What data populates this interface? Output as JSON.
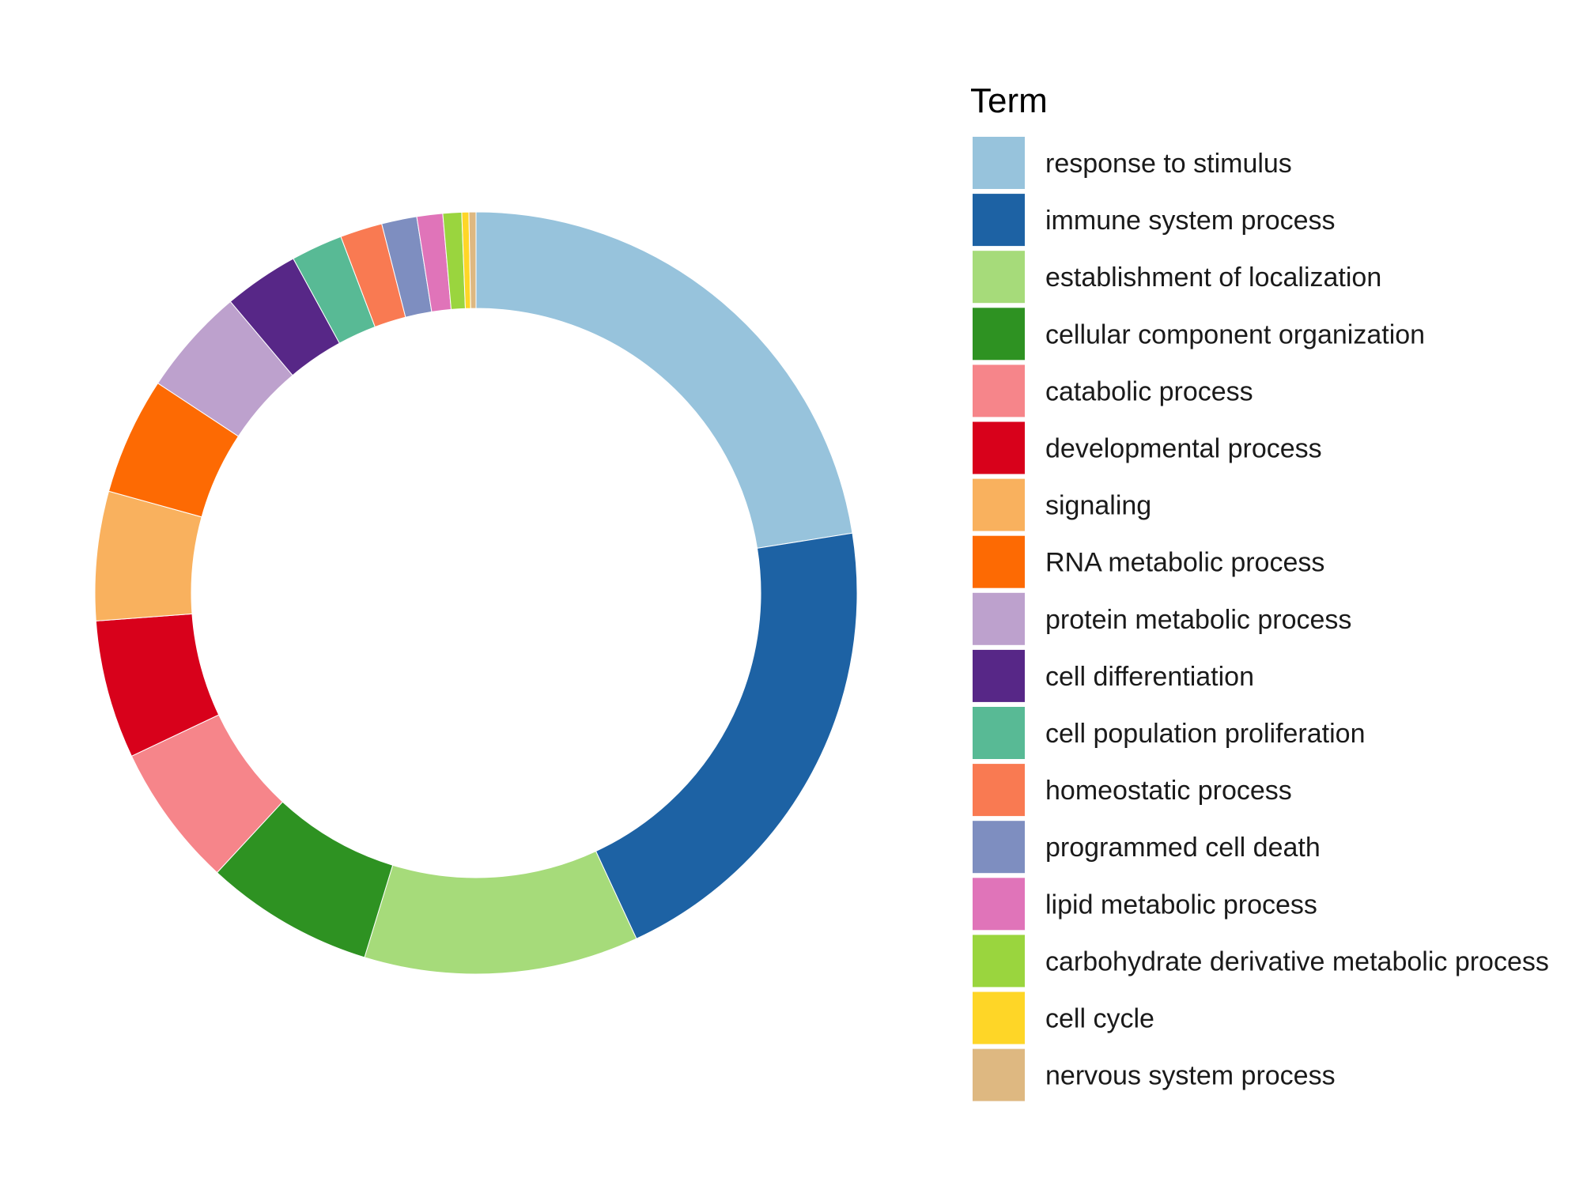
{
  "chart_data": {
    "type": "pie",
    "subtype": "donut",
    "legend_title": "Term",
    "legend_position": "right",
    "slices": [
      {
        "label": "response to stimulus",
        "value": 22.6,
        "color": "#97C3DC"
      },
      {
        "label": "immune system process",
        "value": 20.7,
        "color": "#1D62A4"
      },
      {
        "label": "establishment of localization",
        "value": 11.7,
        "color": "#A6DB7A"
      },
      {
        "label": "cellular component organization",
        "value": 7.2,
        "color": "#2E9222"
      },
      {
        "label": "catabolic process",
        "value": 6.1,
        "color": "#F6858A"
      },
      {
        "label": "developmental process",
        "value": 5.9,
        "color": "#D8011B"
      },
      {
        "label": "signaling",
        "value": 5.5,
        "color": "#F9B15E"
      },
      {
        "label": "RNA metabolic process",
        "value": 5.0,
        "color": "#FD6A03"
      },
      {
        "label": "protein metabolic process",
        "value": 4.6,
        "color": "#BDA1CD"
      },
      {
        "label": "cell differentiation",
        "value": 3.2,
        "color": "#572787"
      },
      {
        "label": "cell population proliferation",
        "value": 2.2,
        "color": "#58BA95"
      },
      {
        "label": "homeostatic process",
        "value": 1.8,
        "color": "#F97A52"
      },
      {
        "label": "programmed cell death",
        "value": 1.5,
        "color": "#7E8EC0"
      },
      {
        "label": "lipid metabolic process",
        "value": 1.1,
        "color": "#E074B9"
      },
      {
        "label": "carbohydrate derivative metabolic process",
        "value": 0.8,
        "color": "#9AD53E"
      },
      {
        "label": "cell cycle",
        "value": 0.3,
        "color": "#FED627"
      },
      {
        "label": "nervous system process",
        "value": 0.3,
        "color": "#DEB881"
      }
    ]
  }
}
